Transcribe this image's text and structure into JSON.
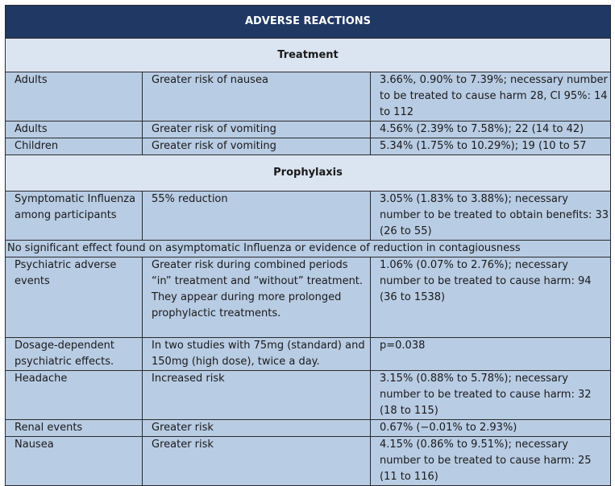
{
  "table": {
    "title": "ADVERSE REACTIONS",
    "sections": {
      "treatment": "Treatment",
      "prophylaxis": "Prophylaxis"
    },
    "treatment_rows": [
      {
        "group": "Adults",
        "effect": "Greater risk of nausea",
        "result": "3.66%, 0.90% to 7.39%; necessary number to be treated to cause harm 28, CI 95%: 14 to 112"
      },
      {
        "group": "Adults",
        "effect": "Greater risk of vomiting",
        "result": "4.56% (2.39% to 7.58%); 22 (14 to 42)"
      },
      {
        "group": "Children",
        "effect": "Greater risk of vomiting",
        "result": "5.34% (1.75% to 10.29%); 19 (10 to 57"
      }
    ],
    "prophylaxis_rows": [
      {
        "group": "Symptomatic Influenza among participants",
        "effect": "55% reduction",
        "result": "3.05% (1.83% to 3.88%); necessary number to be treated to obtain benefits: 33 (26 to 55)"
      }
    ],
    "note": "No significant effect found on asymptomatic Influenza or evidence of reduction in contagiousness",
    "more_rows": [
      {
        "group": "Psychiatric adverse events",
        "effect": "Greater risk during combined periods “in” treatment and “without” treatment.",
        "effect2": "They appear during more prolonged prophylactic treatments.",
        "result": "1.06% (0.07% to 2.76%); necessary number to be treated to cause harm: 94 (36 to 1538)"
      },
      {
        "group": "Dosage-dependent psychiatric effects.",
        "effect": "In two studies with 75mg (standard) and 150mg (high dose), twice a day.",
        "result": "p=0.038"
      },
      {
        "group": "Headache",
        "effect": "Increased risk",
        "result": "3.15% (0.88% to 5.78%); necessary number to be treated to cause harm: 32 (18 to 115)"
      },
      {
        "group": "Renal events",
        "effect": "Greater risk",
        "result": "0.67% (−0.01% to 2.93%)"
      },
      {
        "group": "Nausea",
        "effect": "Greater risk",
        "result": "4.15% (0.86% to 9.51%); necessary number to be treated to cause harm: 25 (11 to 116)"
      }
    ]
  }
}
